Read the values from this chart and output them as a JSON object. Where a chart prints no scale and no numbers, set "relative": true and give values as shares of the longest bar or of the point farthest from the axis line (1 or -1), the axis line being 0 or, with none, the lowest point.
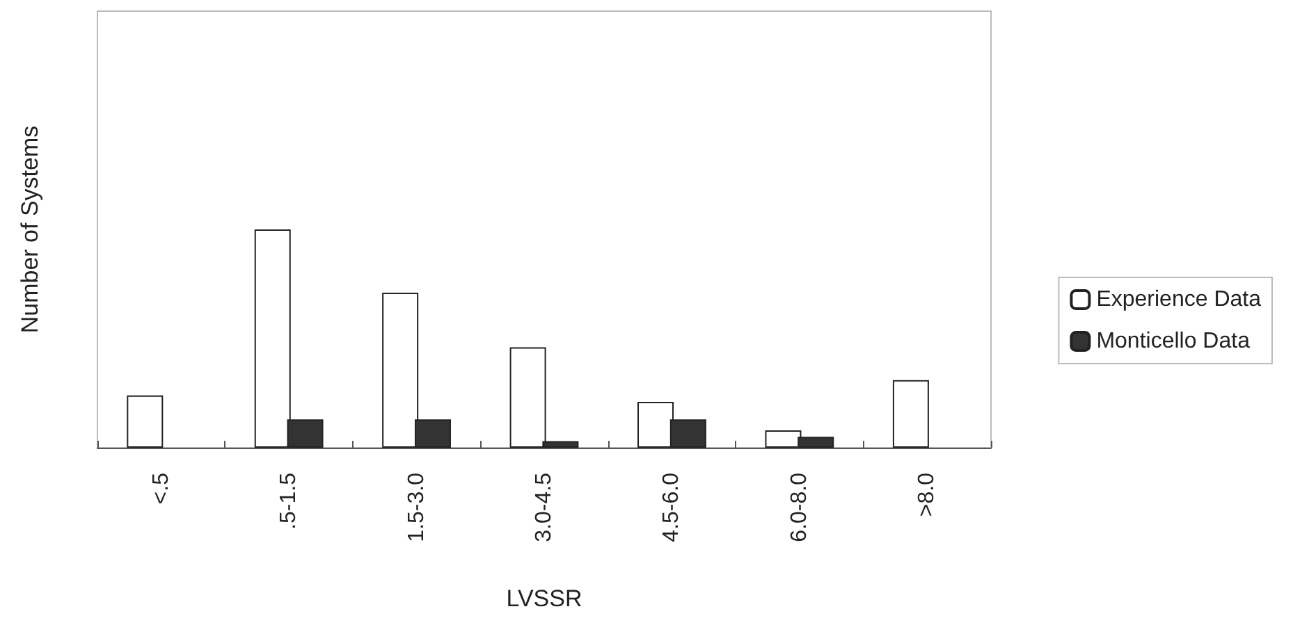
{
  "chart_data": {
    "type": "bar",
    "relative": true,
    "xlabel": "LVSSR",
    "ylabel": "Number of Systems",
    "categories": [
      "<.5",
      ".5-1.5",
      "1.5-3.0",
      "3.0-4.5",
      "4.5-6.0",
      "6.0-8.0",
      ">8.0"
    ],
    "series": [
      {
        "name": "Experience Data",
        "color": "#ffffff",
        "values": [
          0.24,
          1,
          0.71,
          0.46,
          0.21,
          0.08,
          0.31
        ]
      },
      {
        "name": "Monticello Data",
        "color": "#333333",
        "values": [
          null,
          0.13,
          0.13,
          0.03,
          0.13,
          0.05,
          null
        ]
      }
    ],
    "legend": "right",
    "grid": false
  }
}
